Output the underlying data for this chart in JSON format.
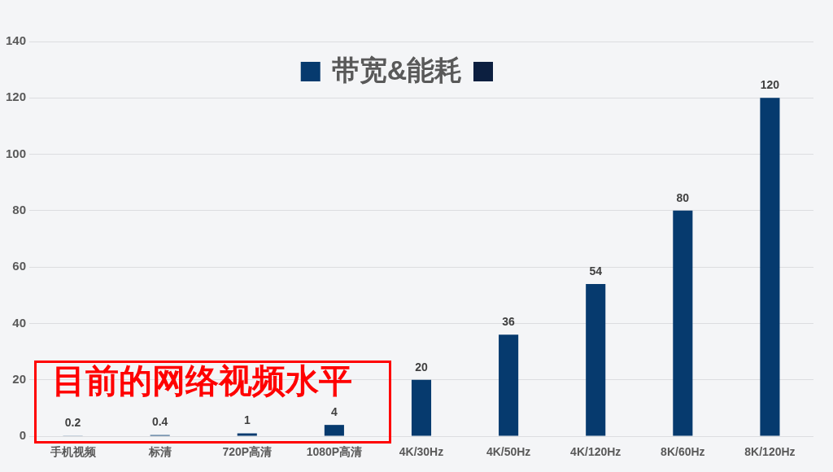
{
  "chart_data": {
    "type": "bar",
    "categories": [
      "手机视频",
      "标清",
      "720P高清",
      "1080P高清",
      "4K/30Hz",
      "4K/50Hz",
      "4K/120Hz",
      "8K/60Hz",
      "8K/120Hz"
    ],
    "series": [
      {
        "name": "带宽&能耗",
        "color": "#063a6e",
        "values": [
          0.2,
          0.4,
          1,
          4,
          20,
          36,
          54,
          80,
          120
        ]
      }
    ],
    "ylim": [
      0,
      140
    ],
    "yticks": [
      0,
      20,
      40,
      60,
      80,
      100,
      120,
      140
    ],
    "grid": "y",
    "legend": "top",
    "data_labels": true,
    "annotations": [
      "目前的网络视频水平"
    ]
  }
}
